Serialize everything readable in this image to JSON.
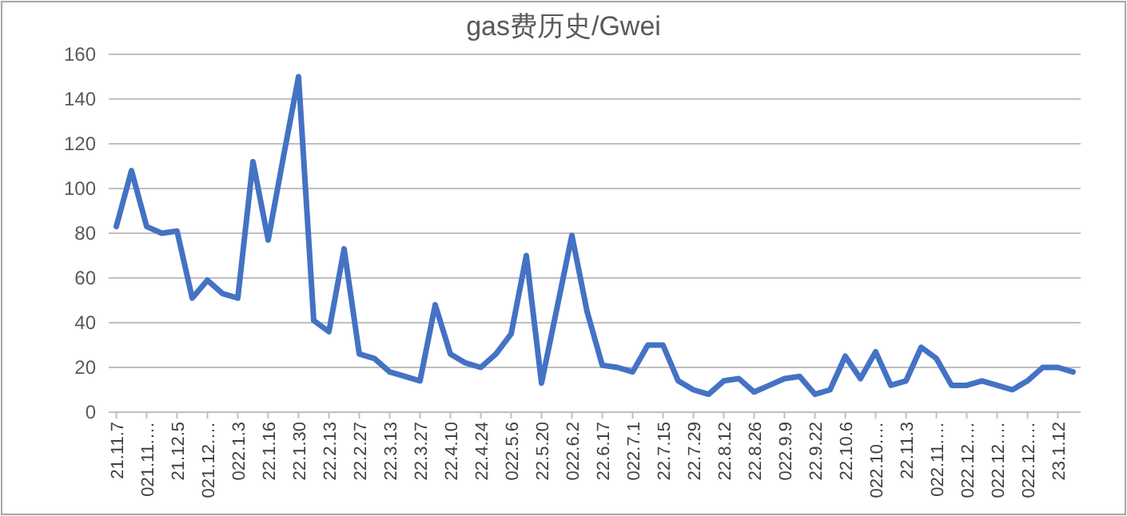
{
  "chart_data": {
    "type": "line",
    "title": "gas费历史/Gwei",
    "categories": [
      "21.11.7",
      null,
      "021.11.…",
      null,
      "21.12.5",
      null,
      "021.12.…",
      null,
      "022.1.3",
      null,
      "22.1.16",
      null,
      "22.1.30",
      null,
      "22.2.13",
      null,
      "22.2.27",
      null,
      "22.3.13",
      null,
      "22.3.27",
      null,
      "22.4.10",
      null,
      "22.4.24",
      null,
      "022.5.6",
      null,
      "22.5.20",
      null,
      "022.6.2",
      null,
      "22.6.17",
      null,
      "022.7.1",
      null,
      "22.7.15",
      null,
      "22.7.29",
      null,
      "22.8.12",
      null,
      "22.8.26",
      null,
      "022.9.9",
      null,
      "22.9.22",
      null,
      "22.10.6",
      null,
      "022.10.…",
      null,
      "22.11.3",
      null,
      "022.11.…",
      null,
      "022.12.…",
      null,
      "022.12.…",
      null,
      "022.12.…",
      null,
      "23.1.12",
      null
    ],
    "series": [
      {
        "color": "#4472c4",
        "values": [
          83,
          108,
          83,
          80,
          81,
          51,
          59,
          53,
          51,
          112,
          77,
          114,
          150,
          41,
          36,
          73,
          26,
          24,
          18,
          16,
          14,
          48,
          26,
          22,
          20,
          26,
          35,
          70,
          13,
          46,
          79,
          45,
          21,
          20,
          18,
          30,
          30,
          14,
          10,
          8,
          14,
          15,
          9,
          12,
          15,
          16,
          8,
          10,
          25,
          15,
          27,
          12,
          14,
          29,
          24,
          12,
          12,
          14,
          12,
          10,
          14,
          20,
          20,
          18
        ]
      }
    ],
    "ylim": [
      0,
      160
    ],
    "yticks": [
      0,
      20,
      40,
      60,
      80,
      100,
      120,
      140,
      160
    ],
    "grid": "y"
  }
}
